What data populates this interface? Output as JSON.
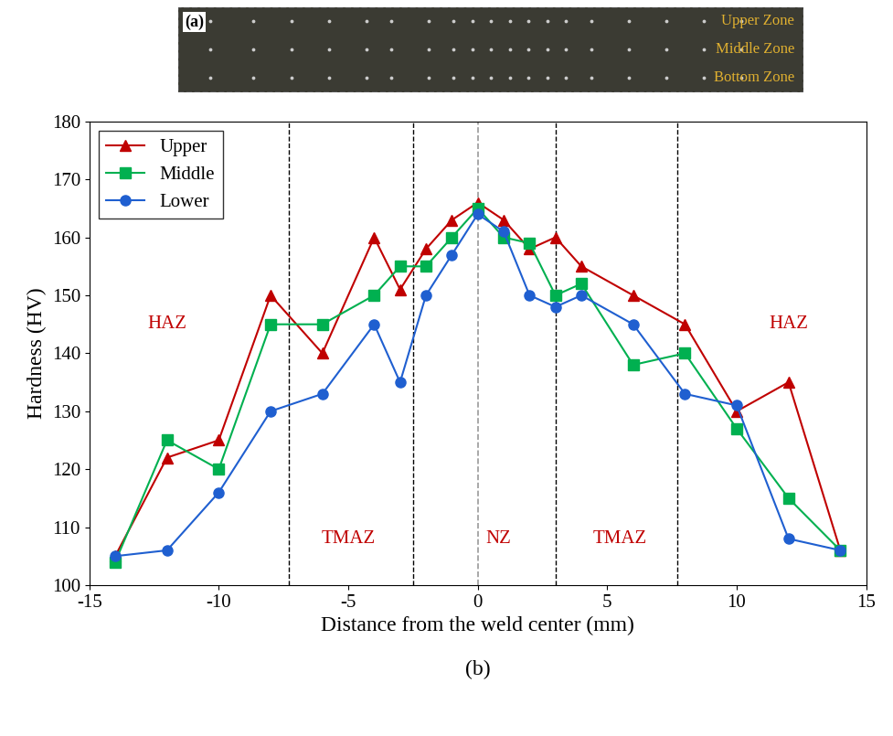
{
  "chart_data": {
    "type": "line",
    "x_label": "Distance from the weld center (mm)",
    "y_label": "Hardness (HV)",
    "caption": "(b)",
    "x": [
      -14,
      -12,
      -10,
      -8,
      -6,
      -4,
      -3,
      -2,
      -1,
      0,
      1,
      2,
      3,
      4,
      6,
      8,
      10,
      12,
      14
    ],
    "series": [
      {
        "name": "Upper",
        "color": "#c00000",
        "marker": "triangle",
        "values": [
          105,
          122,
          125,
          150,
          140,
          160,
          151,
          158,
          163,
          166,
          163,
          158,
          160,
          155,
          150,
          145,
          130,
          135,
          106
        ]
      },
      {
        "name": "Middle",
        "color": "#00b050",
        "marker": "square",
        "values": [
          104,
          125,
          120,
          145,
          145,
          150,
          155,
          155,
          160,
          165,
          160,
          159,
          150,
          152,
          138,
          140,
          127,
          115,
          106
        ]
      },
      {
        "name": "Lower",
        "color": "#1f5fd0",
        "marker": "circle",
        "values": [
          105,
          106,
          116,
          130,
          133,
          145,
          135,
          150,
          157,
          164,
          161,
          150,
          148,
          150,
          145,
          133,
          131,
          108,
          106
        ]
      }
    ],
    "xlim": [
      -15,
      15
    ],
    "xticks": [
      -15,
      -10,
      -5,
      0,
      5,
      10,
      15
    ],
    "ylim": [
      100,
      180
    ],
    "yticks": [
      100,
      110,
      120,
      130,
      140,
      150,
      160,
      170,
      180
    ],
    "legend": "upper left",
    "zone_boundaries": [
      -7.3,
      -2.5,
      3,
      7.7
    ],
    "weld_center": 0,
    "annotations": [
      {
        "text": "HAZ",
        "x": -12,
        "y": 145,
        "color": "#c00000"
      },
      {
        "text": "TMAZ",
        "x": -5,
        "y": 108,
        "color": "#c00000"
      },
      {
        "text": "NZ",
        "x": 0.8,
        "y": 108,
        "color": "#c00000"
      },
      {
        "text": "TMAZ",
        "x": 5.5,
        "y": 108,
        "color": "#c00000"
      },
      {
        "text": "HAZ",
        "x": 12,
        "y": 145,
        "color": "#c00000"
      }
    ]
  },
  "specimen": {
    "label": "(a)",
    "zones": [
      "Upper Zone",
      "Middle Zone",
      "Bottom Zone"
    ],
    "zone_color": "#e0b030"
  }
}
